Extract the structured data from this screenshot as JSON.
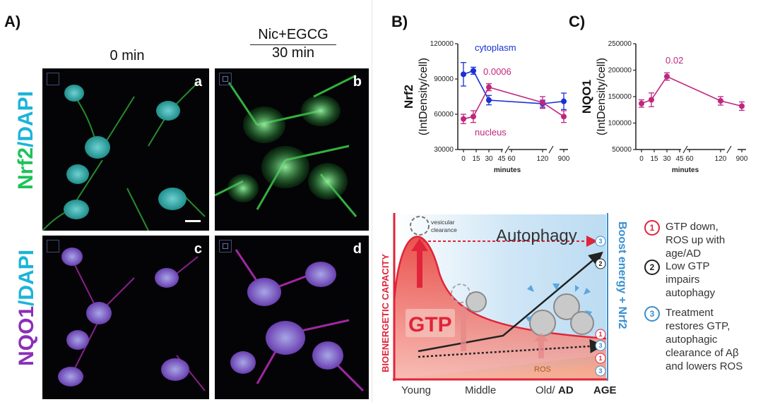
{
  "panels": {
    "a_letter": "A)",
    "b_letter": "B)",
    "c_letter": "C)"
  },
  "microscopy": {
    "col_left_title": "0 min",
    "col_right_title_top": "Nic+EGCG",
    "col_right_title_bottom": "30 min",
    "row_top_label_part1": "Nrf2",
    "row_top_label_part2": "/DAPI",
    "row_bottom_label_part1": "NQO1",
    "row_bottom_label_part2": "/DAPI",
    "sub_a": "a",
    "sub_b": "b",
    "sub_c": "c",
    "sub_d": "d"
  },
  "chart_data": [
    {
      "type": "line",
      "title": "",
      "ylabel_main": "Nrf2",
      "ylabel_sub": "(IntDensity/cell)",
      "xlabel": "minutes",
      "x_ticks": [
        "0",
        "15",
        "30",
        "45",
        "60",
        "120",
        "900"
      ],
      "y_ticks": [
        "30000",
        "60000",
        "90000",
        "120000"
      ],
      "ylim": [
        30000,
        120000
      ],
      "series": [
        {
          "name": "cytoplasm",
          "color": "#1a2fd6",
          "x": [
            "0",
            "10",
            "30",
            "120",
            "900"
          ],
          "values": [
            94000,
            97000,
            72000,
            69000,
            71000
          ],
          "err": [
            10000,
            3000,
            4000,
            3000,
            7000
          ]
        },
        {
          "name": "nucleus",
          "color": "#c0267f",
          "x": [
            "0",
            "10",
            "30",
            "120",
            "900"
          ],
          "values": [
            56000,
            58000,
            83000,
            70000,
            58000
          ],
          "err": [
            4000,
            5000,
            3000,
            5000,
            5000
          ]
        }
      ],
      "annotation": "0.0006"
    },
    {
      "type": "line",
      "title": "",
      "ylabel_main": "NQO1",
      "ylabel_sub": "(IntDensity/cell)",
      "xlabel": "minutes",
      "x_ticks": [
        "0",
        "15",
        "30",
        "45",
        "60",
        "120",
        "900"
      ],
      "y_ticks": [
        "50000",
        "100000",
        "150000",
        "200000",
        "250000"
      ],
      "ylim": [
        50000,
        250000
      ],
      "series": [
        {
          "name": "NQO1",
          "color": "#c0267f",
          "x": [
            "0",
            "10",
            "30",
            "120",
            "900"
          ],
          "values": [
            137000,
            144000,
            188000,
            142000,
            132000
          ],
          "err": [
            7000,
            13000,
            7000,
            8000,
            8000
          ]
        }
      ],
      "annotation": "0.02"
    }
  ],
  "schematic": {
    "autophagy": "Autophagy",
    "gtp": "GTP",
    "ros": "ROS",
    "vesicular1": "vesicular",
    "vesicular2": "clearance",
    "y_axis": "BIOENERGETIC CAPACITY",
    "right_axis": "Boost energy + Nrf2",
    "x_young": "Young",
    "x_middle": "Middle",
    "x_old": "Old/",
    "x_ad": "AD",
    "x_age": "AGE",
    "markers": [
      "3",
      "2",
      "1",
      "3",
      "1",
      "3"
    ]
  },
  "legend": [
    {
      "num": "1",
      "text": "GTP down, ROS up with age/AD",
      "color": "#e0243a"
    },
    {
      "num": "2",
      "text": "Low GTP impairs autophagy",
      "color": "#222222"
    },
    {
      "num": "3",
      "text": "Treatment restores GTP, autophagic clearance of Aβ and lowers ROS",
      "color": "#3a8fd0"
    }
  ]
}
